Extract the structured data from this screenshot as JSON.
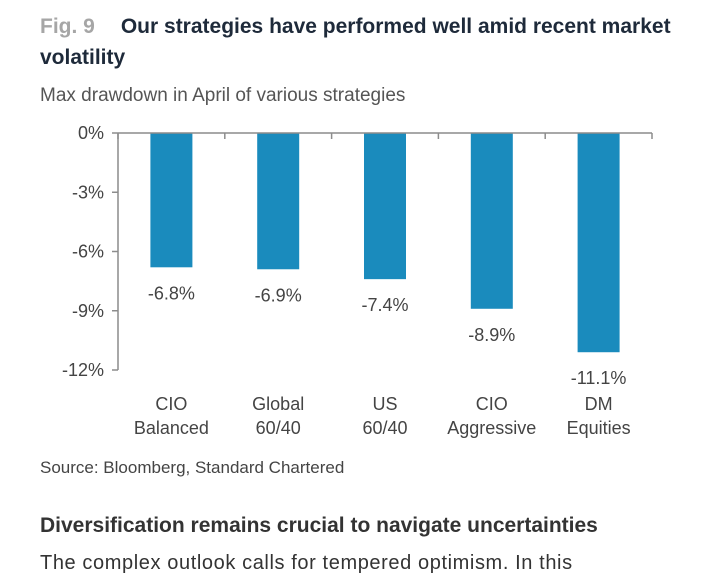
{
  "figure": {
    "label": "Fig. 9",
    "title": "Our strategies have performed well amid recent market volatility"
  },
  "source": "Source: Bloomberg, Standard Chartered",
  "section_heading": "Diversification remains crucial to navigate uncertainties",
  "body_text": "The complex outlook calls for tempered optimism. In this",
  "colors": {
    "bar": "#1a8bbd",
    "axis": "#8c8c8c"
  },
  "chart_data": {
    "type": "bar",
    "title": "Max drawdown in April of various strategies",
    "categories": [
      [
        "CIO",
        "Balanced"
      ],
      [
        "Global",
        "60/40"
      ],
      [
        "US",
        "60/40"
      ],
      [
        "CIO",
        "Aggressive"
      ],
      [
        "DM",
        "Equities"
      ]
    ],
    "values": [
      -6.8,
      -6.9,
      -7.4,
      -8.9,
      -11.1
    ],
    "data_labels": [
      "-6.8%",
      "-6.9%",
      "-7.4%",
      "-8.9%",
      "-11.1%"
    ],
    "ylim": [
      -12,
      0
    ],
    "yticks": [
      0,
      -3,
      -6,
      -9,
      -12
    ],
    "ytick_labels": [
      "0%",
      "-3%",
      "-6%",
      "-9%",
      "-12%"
    ],
    "xlabel": "",
    "ylabel": "",
    "grid": false
  }
}
